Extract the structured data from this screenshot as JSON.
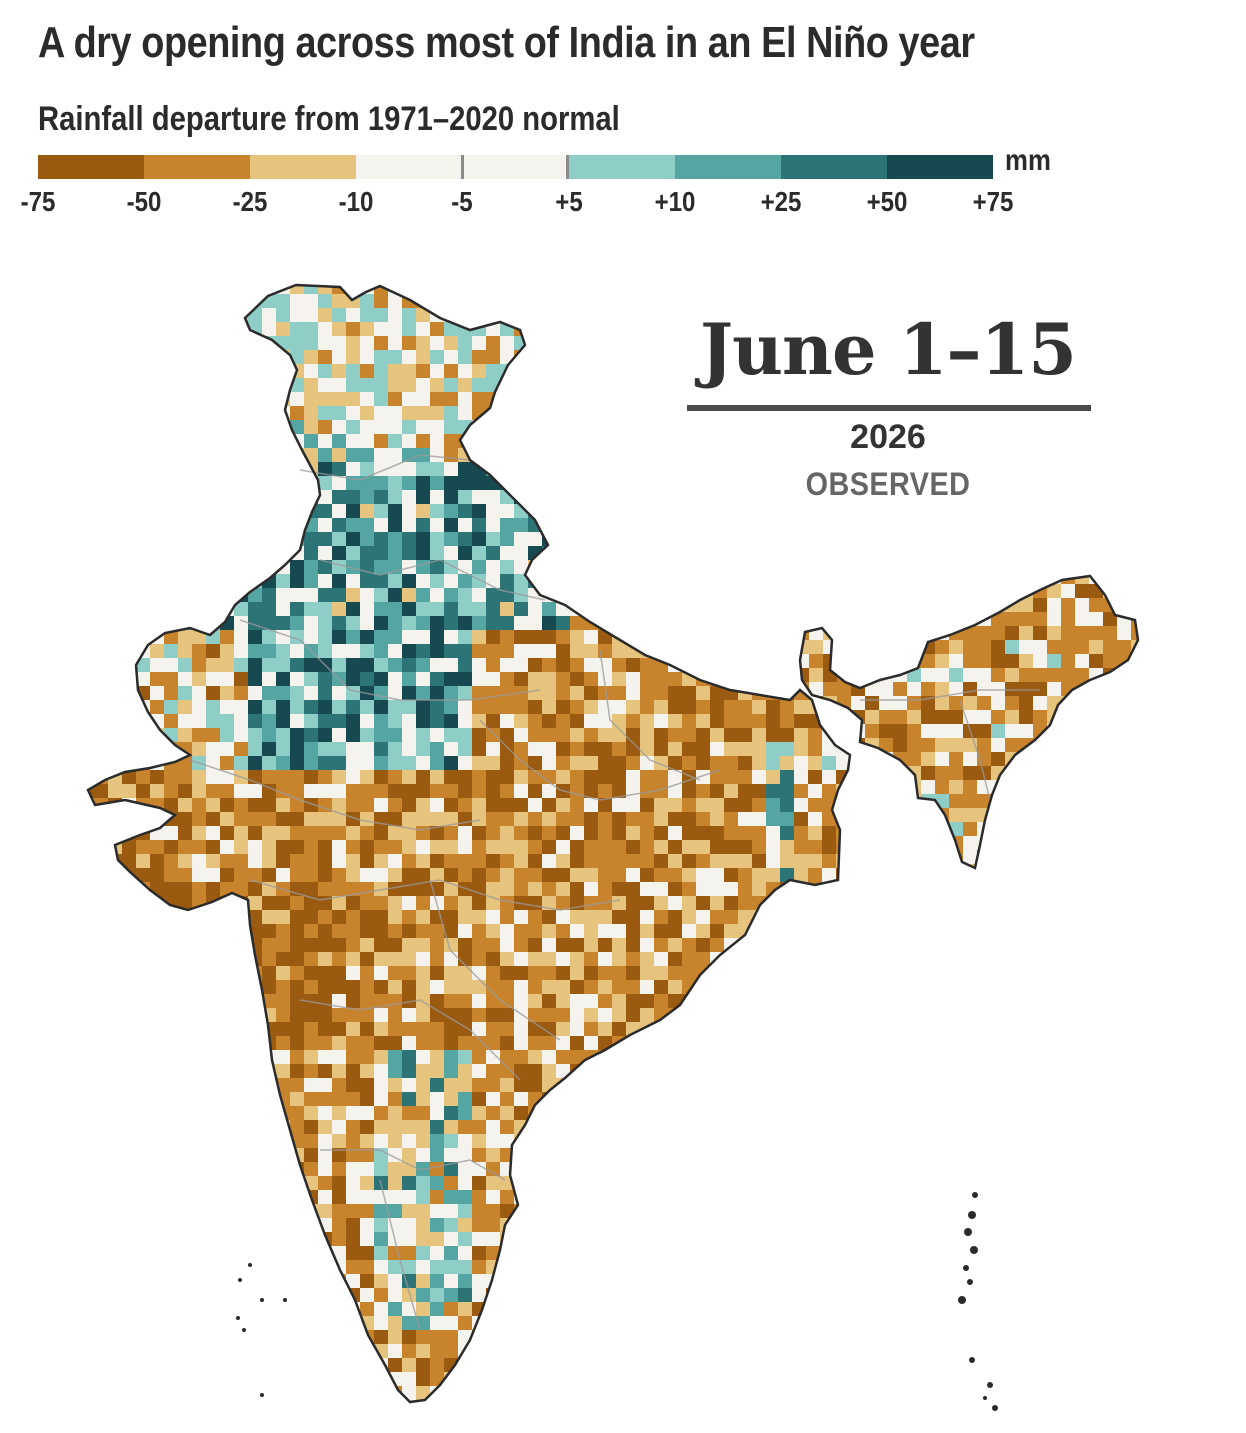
{
  "header": {
    "title": "A dry opening across most of India in an El Niño year",
    "subtitle": "Rainfall departure from 1971–2020 normal"
  },
  "legend": {
    "unit": "mm",
    "labels": [
      "-75",
      "-50",
      "-25",
      "-10",
      "-5",
      "+5",
      "+10",
      "+25",
      "+50",
      "+75"
    ],
    "colors": [
      "#9a5a10",
      "#c8842c",
      "#e6c47e",
      "#f5f3ee",
      "#f5f3ee",
      "#8fcdc7",
      "#55a6a2",
      "#2c7475",
      "#164a50"
    ]
  },
  "panel": {
    "period": "June 1–15",
    "year": "2026",
    "status": "OBSERVED"
  },
  "map": {
    "region": "India",
    "colors": {
      "very_dry": "#9a5a10",
      "dry": "#c8842c",
      "slightly_dry": "#e6c47e",
      "near_normal": "#f5f3ee",
      "slightly_wet": "#8fcdc7",
      "wet": "#55a6a2",
      "very_wet": "#2c7475",
      "extreme_wet": "#164a50",
      "outline": "#2b2b2b",
      "state_borders": "#9a9a9a"
    }
  }
}
